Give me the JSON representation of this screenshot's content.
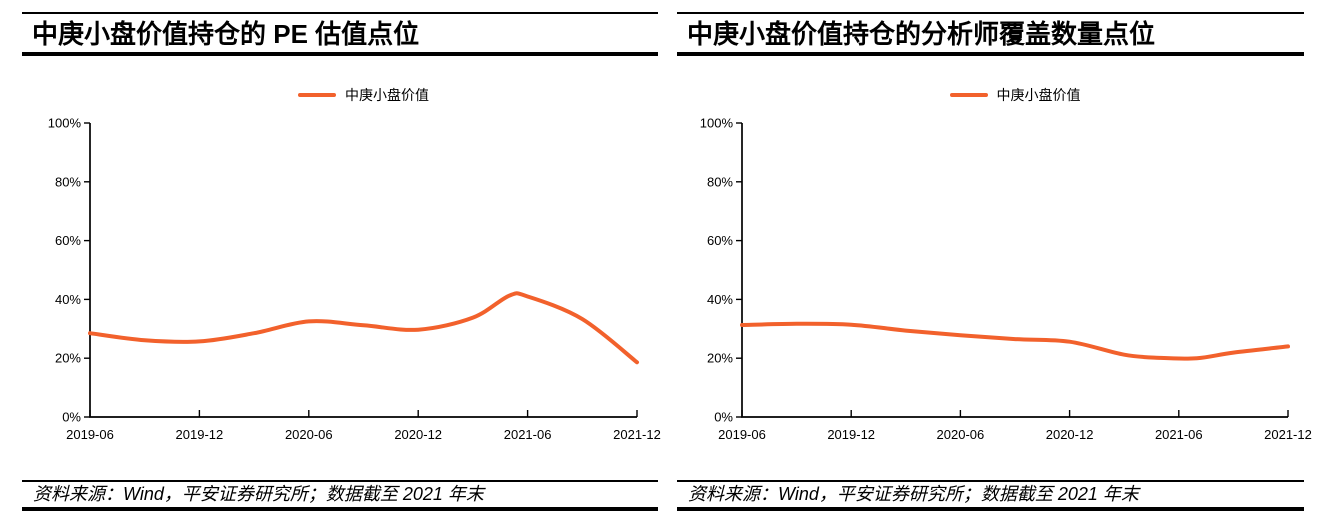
{
  "panels": [
    {
      "title": "中庚小盘价值持仓的 PE 估值点位",
      "legend_label": "中庚小盘价值",
      "source_note": "资料来源：Wind，平安证券研究所；数据截至 2021 年末"
    },
    {
      "title": "中庚小盘价值持仓的分析师覆盖数量点位",
      "legend_label": "中庚小盘价值",
      "source_note": "资料来源：Wind，平安证券研究所；数据截至 2021 年末"
    }
  ],
  "colors": {
    "series_orange": "#F2612C",
    "rule_black": "#000000",
    "text_black": "#000000"
  },
  "chart_data": [
    {
      "type": "line",
      "title": "中庚小盘价值持仓的 PE 估值点位",
      "legend_position": "top",
      "grid": false,
      "xlabel": "",
      "ylabel": "",
      "x_tick_labels": [
        "2019-06",
        "2019-12",
        "2020-06",
        "2020-12",
        "2021-06",
        "2021-12"
      ],
      "y_tick_labels": [
        "0%",
        "20%",
        "40%",
        "60%",
        "80%",
        "100%"
      ],
      "ylim": [
        0,
        100
      ],
      "series": [
        {
          "name": "中庚小盘价值",
          "color": "#F2612C",
          "points": [
            [
              "2019-06",
              28.5
            ],
            [
              "2019-09",
              26.1
            ],
            [
              "2019-12",
              25.7
            ],
            [
              "2020-03",
              28.5
            ],
            [
              "2020-06",
              32.5
            ],
            [
              "2020-09",
              31.2
            ],
            [
              "2020-12",
              29.7
            ],
            [
              "2021-03",
              33.8
            ],
            [
              "2021-05",
              41.3
            ],
            [
              "2021-06",
              41.0
            ],
            [
              "2021-09",
              33.3
            ],
            [
              "2021-12",
              18.6
            ]
          ]
        }
      ]
    },
    {
      "type": "line",
      "title": "中庚小盘价值持仓的分析师覆盖数量点位",
      "legend_position": "top",
      "grid": false,
      "xlabel": "",
      "ylabel": "",
      "x_tick_labels": [
        "2019-06",
        "2019-12",
        "2020-06",
        "2020-12",
        "2021-06",
        "2021-12"
      ],
      "y_tick_labels": [
        "0%",
        "20%",
        "40%",
        "60%",
        "80%",
        "100%"
      ],
      "ylim": [
        0,
        100
      ],
      "series": [
        {
          "name": "中庚小盘价值",
          "color": "#F2612C",
          "points": [
            [
              "2019-06",
              31.3
            ],
            [
              "2019-09",
              31.7
            ],
            [
              "2019-12",
              31.4
            ],
            [
              "2020-03",
              29.4
            ],
            [
              "2020-06",
              27.8
            ],
            [
              "2020-09",
              26.5
            ],
            [
              "2020-12",
              25.6
            ],
            [
              "2021-03",
              21.2
            ],
            [
              "2021-05",
              20.1
            ],
            [
              "2021-07",
              20.0
            ],
            [
              "2021-09",
              21.9
            ],
            [
              "2021-12",
              24.0
            ]
          ]
        }
      ]
    }
  ]
}
